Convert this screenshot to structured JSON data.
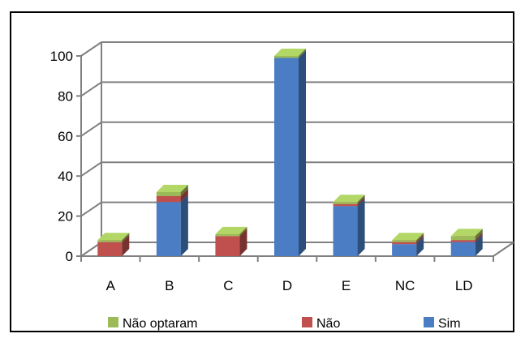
{
  "chart_data": {
    "type": "bar",
    "stacked": true,
    "three_d": true,
    "categories": [
      "A",
      "B",
      "C",
      "D",
      "E",
      "NC",
      "LD"
    ],
    "series": [
      {
        "name": "Sim",
        "color": "#4a7dc4",
        "values": [
          0,
          27,
          0,
          99,
          25,
          6,
          7
        ]
      },
      {
        "name": "Não",
        "color": "#c0504d",
        "values": [
          7,
          3,
          10,
          0,
          1,
          1,
          1
        ]
      },
      {
        "name": "Não optaram",
        "color": "#9bbb59",
        "values": [
          1,
          2,
          1,
          1,
          1,
          1,
          2
        ]
      }
    ],
    "y_ticks": [
      "0",
      "20",
      "40",
      "60",
      "80",
      "100"
    ],
    "ylim": [
      0,
      100
    ],
    "grid": true,
    "legend": {
      "position": "bottom",
      "order": [
        "Não optaram",
        "Não",
        "Sim"
      ]
    }
  }
}
